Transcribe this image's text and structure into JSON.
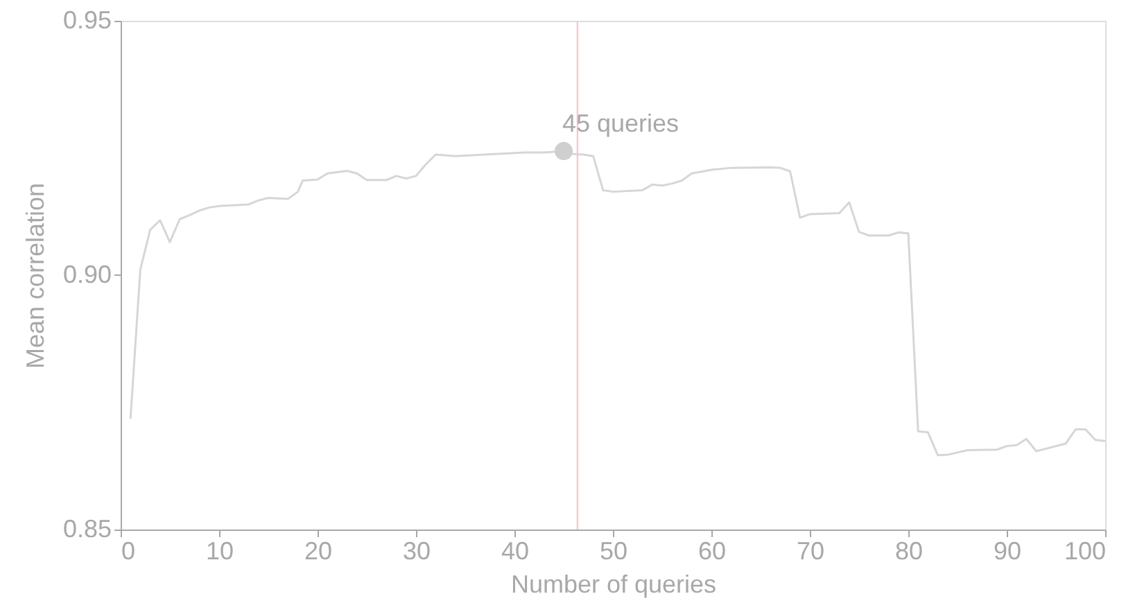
{
  "chart_data": {
    "type": "line",
    "xlabel": "Number of queries",
    "ylabel": "Mean correlation",
    "xlim": [
      0,
      100
    ],
    "xticks": [
      0,
      10,
      20,
      30,
      40,
      50,
      60,
      70,
      80,
      90,
      100
    ],
    "ylim": [
      0.85,
      0.95
    ],
    "yticks": [
      {
        "value": 0.85,
        "label": "0.85"
      },
      {
        "value": 0.9,
        "label": "0.90"
      },
      {
        "value": 0.95,
        "label": "0.95"
      }
    ],
    "grid": false,
    "marker": "none",
    "line_style": "solid",
    "series": [
      {
        "color": "#d6d6d6",
        "x": [
          1,
          2,
          3,
          4,
          5,
          6,
          7,
          8,
          9,
          10,
          13,
          14,
          15,
          17,
          18,
          18.5,
          20,
          21,
          23,
          24,
          25,
          27,
          28,
          29,
          30,
          31,
          32,
          34,
          38,
          41,
          43,
          45,
          46,
          47,
          48,
          49,
          50,
          53,
          54,
          55,
          56,
          57,
          58,
          60,
          62,
          66,
          67,
          68,
          69,
          70,
          73,
          74,
          75,
          76,
          78,
          79,
          80,
          81,
          82,
          83,
          84,
          86,
          89,
          90,
          91,
          92,
          93,
          95,
          96,
          97,
          98,
          99,
          100
        ],
        "values": [
          0.8718,
          0.9011,
          0.9089,
          0.9108,
          0.9065,
          0.911,
          0.9118,
          0.9127,
          0.9133,
          0.9136,
          0.9139,
          0.9147,
          0.9152,
          0.915,
          0.9164,
          0.9186,
          0.9188,
          0.92,
          0.9205,
          0.92,
          0.9187,
          0.9187,
          0.9195,
          0.919,
          0.9195,
          0.9218,
          0.9237,
          0.9234,
          0.9238,
          0.9241,
          0.9241,
          0.9244,
          0.9238,
          0.9237,
          0.9234,
          0.9167,
          0.9164,
          0.9167,
          0.9178,
          0.9176,
          0.918,
          0.9186,
          0.92,
          0.9207,
          0.9211,
          0.9212,
          0.9211,
          0.9204,
          0.9113,
          0.912,
          0.9122,
          0.9143,
          0.9085,
          0.9078,
          0.9078,
          0.9084,
          0.9082,
          0.8693,
          0.8691,
          0.8646,
          0.8647,
          0.8656,
          0.8657,
          0.8664,
          0.8666,
          0.8678,
          0.8654,
          0.8664,
          0.8669,
          0.8697,
          0.8697,
          0.8676,
          0.8674
        ]
      }
    ],
    "ref_lines": [
      {
        "axis": "x",
        "value": 46.4,
        "color": "#f7c6cf"
      }
    ],
    "annotations": [
      {
        "text": "45 queries",
        "x": 45,
        "y": 0.9244
      }
    ]
  }
}
